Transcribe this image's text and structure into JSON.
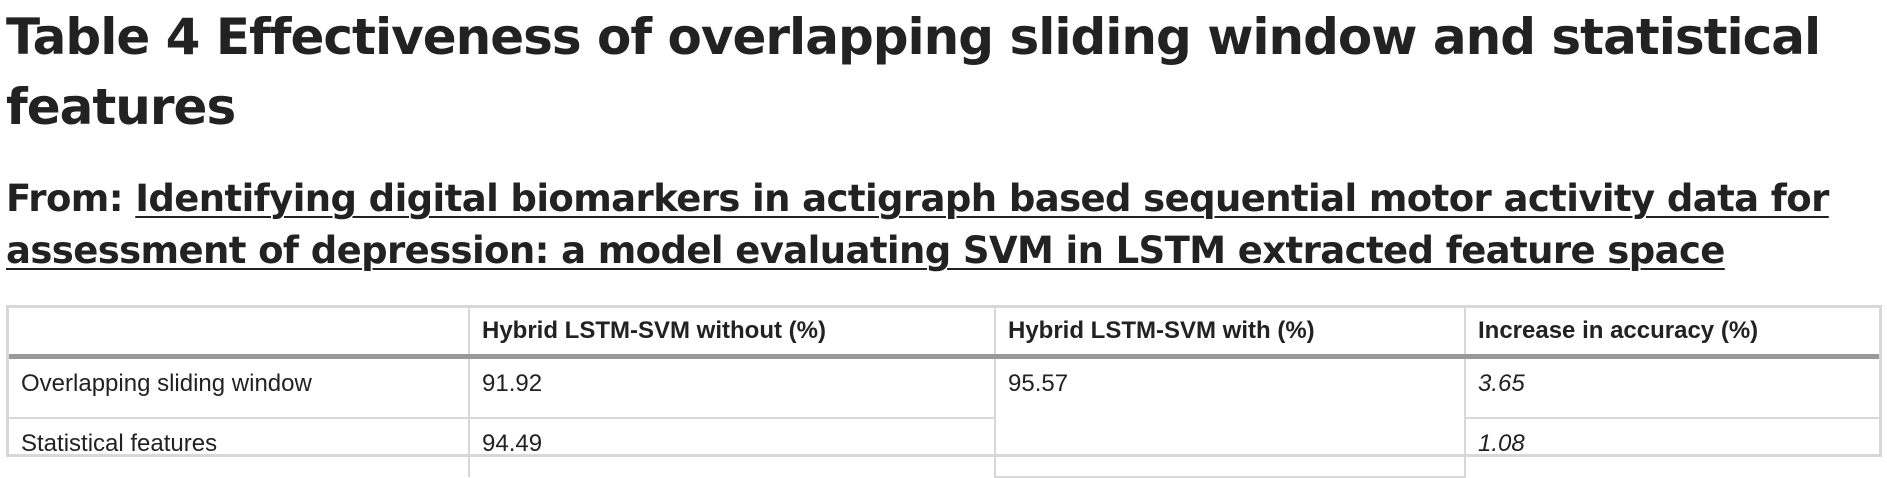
{
  "title": "Table 4 Effectiveness of overlapping sliding window and statistical features",
  "source": {
    "prefix": "From: ",
    "article_title": "Identifying digital biomarkers in actigraph based sequential motor activity data for assessment of depression: a model evaluating SVM in LSTM extracted feature space"
  },
  "table": {
    "headers": [
      "",
      "Hybrid LSTM-SVM without (%)",
      "Hybrid LSTM-SVM with (%)",
      "Increase in accuracy (%)"
    ],
    "rows": [
      {
        "label": "Overlapping sliding window",
        "without": "91.92",
        "with": "95.57",
        "increase": "3.65"
      },
      {
        "label": "Statistical features",
        "without": "94.49",
        "increase": "1.08"
      }
    ]
  }
}
